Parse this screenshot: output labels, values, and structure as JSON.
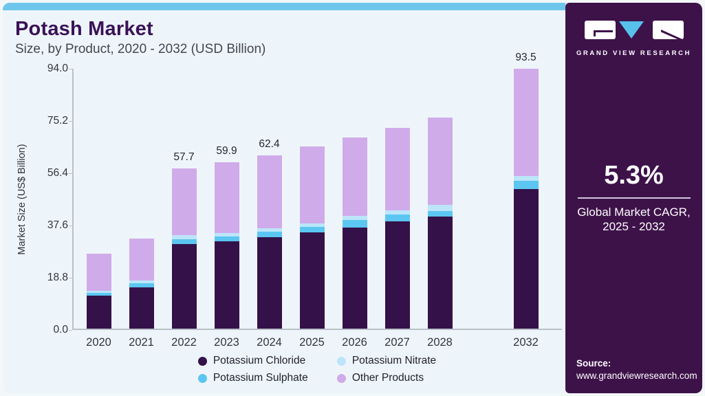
{
  "header": {
    "title": "Potash Market",
    "subtitle": "Size, by Product, 2020 - 2032 (USD Billion)"
  },
  "chart_data": {
    "type": "bar",
    "stacked": true,
    "title": "Potash Market Size, by Product, 2020 - 2032 (USD Billion)",
    "categories": [
      "2020",
      "2021",
      "2022",
      "2023",
      "2024",
      "2025",
      "2026",
      "2027",
      "2028",
      "2032"
    ],
    "series": [
      {
        "name": "Potassium Chloride",
        "color": "#341149",
        "values": [
          11.9,
          14.8,
          30.5,
          31.5,
          32.8,
          34.6,
          36.3,
          38.5,
          40.3,
          50.1
        ]
      },
      {
        "name": "Potassium Sulphate",
        "color": "#5bc6f1",
        "values": [
          0.9,
          1.5,
          1.7,
          1.6,
          2.2,
          1.9,
          2.8,
          2.6,
          2.1,
          3.1
        ]
      },
      {
        "name": "Potassium Nitrate",
        "color": "#bce5fa",
        "values": [
          0.9,
          1.0,
          1.4,
          1.4,
          1.2,
          1.4,
          1.4,
          1.4,
          2.1,
          1.8
        ]
      },
      {
        "name": "Other Products",
        "color": "#d0abea",
        "values": [
          13.3,
          15.1,
          24.1,
          25.4,
          26.2,
          27.6,
          28.3,
          29.8,
          31.5,
          38.5
        ]
      }
    ],
    "totals": [
      27.0,
      32.4,
      57.7,
      59.9,
      62.4,
      65.5,
      68.8,
      72.3,
      76.0,
      93.5
    ],
    "total_labels": [
      "",
      "",
      "57.7",
      "59.9",
      "62.4",
      "",
      "",
      "",
      "",
      "93.5"
    ],
    "ylabel": "Market Size (US$ Billion)",
    "xlabel": "",
    "ylim": [
      0,
      94
    ],
    "yticks": [
      "94.0",
      "75.2",
      "56.4",
      "37.6",
      "18.8",
      "0.0"
    ],
    "grid": false,
    "legend_position": "bottom",
    "legend_order": [
      "Potassium Chloride",
      "Potassium Nitrate",
      "Potassium Sulphate",
      "Other Products"
    ]
  },
  "sidebar": {
    "brand": "GRAND VIEW RESEARCH",
    "cagr_value": "5.3%",
    "cagr_caption_line1": "Global Market CAGR,",
    "cagr_caption_line2": "2025 - 2032",
    "source_label": "Source:",
    "source_url": "www.grandviewresearch.com"
  },
  "colors": {
    "panel_bg": "#eef5fa",
    "top_strip": "#6fc6ec",
    "title_text": "#3a1258",
    "subtitle_text": "#44464f",
    "axis_line": "#b9c0c8",
    "axis_text": "#33343c",
    "value_label_text": "#26262e",
    "sidebar_bg": "#3d1249",
    "logo_accent": "#57c1ec",
    "divider": "#cfc6d8"
  }
}
